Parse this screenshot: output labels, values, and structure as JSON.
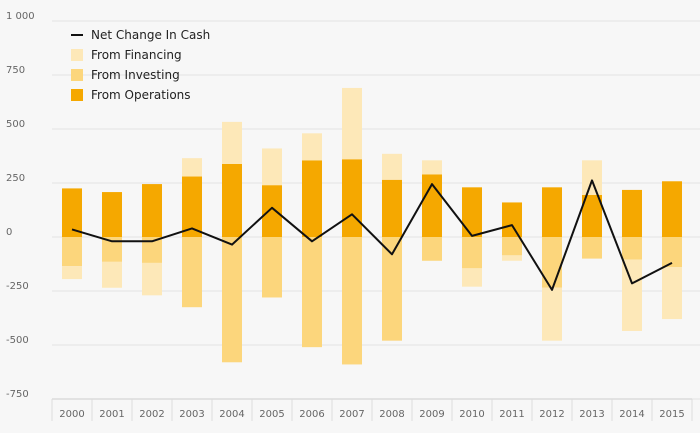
{
  "chart_data": {
    "type": "bar",
    "categories": [
      "2000",
      "2001",
      "2002",
      "2003",
      "2004",
      "2005",
      "2006",
      "2007",
      "2008",
      "2009",
      "2010",
      "2011",
      "2012",
      "2013",
      "2014",
      "2015"
    ],
    "series": [
      {
        "name": "From Operations",
        "kind": "bar",
        "color": "#f5a800",
        "values": [
          225,
          208,
          245,
          280,
          338,
          240,
          355,
          360,
          265,
          290,
          230,
          160,
          230,
          195,
          218,
          258
        ]
      },
      {
        "name": "From Investing",
        "kind": "bar",
        "color": "#fcd67c",
        "values": [
          -135,
          -115,
          -120,
          -325,
          -580,
          -280,
          -510,
          -590,
          -480,
          -110,
          -145,
          -85,
          -235,
          -100,
          -105,
          -140
        ]
      },
      {
        "name": "From Financing",
        "kind": "bar",
        "color": "#fde8b8",
        "values": [
          -60,
          -120,
          -150,
          85,
          195,
          170,
          125,
          330,
          120,
          65,
          -85,
          -25,
          -245,
          160,
          -330,
          -240
        ]
      },
      {
        "name": "Net Change In Cash",
        "kind": "line",
        "color": "#111111",
        "values": [
          35,
          -20,
          -20,
          40,
          -35,
          135,
          -20,
          105,
          -80,
          245,
          5,
          55,
          -245,
          262,
          -215,
          -120
        ]
      }
    ],
    "yticks": [
      {
        "value": 1000,
        "label": "1 000"
      },
      {
        "value": 750,
        "label": "750"
      },
      {
        "value": 500,
        "label": "500"
      },
      {
        "value": 250,
        "label": "250"
      },
      {
        "value": 0,
        "label": "0"
      },
      {
        "value": -250,
        "label": "-250"
      },
      {
        "value": -500,
        "label": "-500"
      },
      {
        "value": -750,
        "label": "-750"
      }
    ],
    "ylim": [
      -750,
      1000
    ],
    "grid": true,
    "legend": {
      "placement": "top-left",
      "items": [
        {
          "label": "Net Change In Cash",
          "marker": "line",
          "color": "#111111"
        },
        {
          "label": "From Financing",
          "marker": "square",
          "color": "#fde8b8"
        },
        {
          "label": "From Investing",
          "marker": "square",
          "color": "#fcd67c"
        },
        {
          "label": "From Operations",
          "marker": "square",
          "color": "#f5a800"
        }
      ]
    }
  }
}
